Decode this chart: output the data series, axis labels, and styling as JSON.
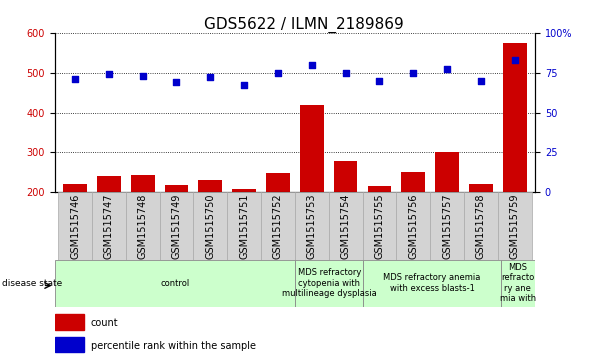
{
  "title": "GDS5622 / ILMN_2189869",
  "samples": [
    "GSM1515746",
    "GSM1515747",
    "GSM1515748",
    "GSM1515749",
    "GSM1515750",
    "GSM1515751",
    "GSM1515752",
    "GSM1515753",
    "GSM1515754",
    "GSM1515755",
    "GSM1515756",
    "GSM1515757",
    "GSM1515758",
    "GSM1515759"
  ],
  "counts": [
    222,
    242,
    244,
    218,
    232,
    208,
    248,
    418,
    278,
    215,
    252,
    300,
    222,
    575
  ],
  "percentile_ranks": [
    71,
    74,
    73,
    69,
    72,
    67,
    75,
    80,
    75,
    70,
    75,
    77,
    70,
    83
  ],
  "ylim_left": [
    200,
    600
  ],
  "ylim_right": [
    0,
    100
  ],
  "yticks_left": [
    200,
    300,
    400,
    500,
    600
  ],
  "yticks_right": [
    0,
    25,
    50,
    75,
    100
  ],
  "bar_color": "#cc0000",
  "dot_color": "#0000cc",
  "disease_groups": [
    {
      "label": "control",
      "start": 0,
      "end": 7
    },
    {
      "label": "MDS refractory\ncytopenia with\nmultilineage dysplasia",
      "start": 7,
      "end": 9
    },
    {
      "label": "MDS refractory anemia\nwith excess blasts-1",
      "start": 9,
      "end": 13
    },
    {
      "label": "MDS\nrefracto\nry ane\nmia with",
      "start": 13,
      "end": 14
    }
  ],
  "disease_bg_color": "#ccffcc",
  "xtick_bg_color": "#d3d3d3",
  "legend_count_label": "count",
  "legend_percentile_label": "percentile rank within the sample",
  "disease_state_label": "disease state",
  "title_fontsize": 11,
  "tick_fontsize": 7,
  "label_fontsize": 6,
  "disease_fontsize": 6
}
